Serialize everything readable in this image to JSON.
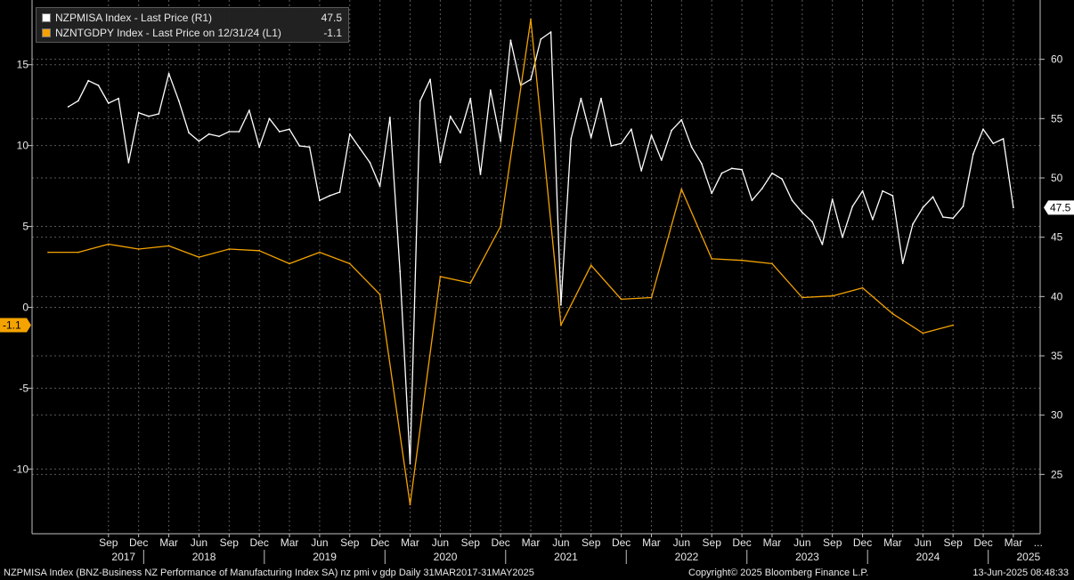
{
  "colors": {
    "background": "#000000",
    "pmi_line": "#ffffff",
    "gdp_line": "#f4a300",
    "grid": "#5a5a5a",
    "text": "#e8e8e8"
  },
  "legend": {
    "pmi_label": "NZPMISA Index - Last Price (R1)",
    "pmi_value": "47.5",
    "gdp_label": "NZNTGDPY Index - Last Price on 12/31/24 (L1)",
    "gdp_value": "-1.1"
  },
  "footer": {
    "left": "NZPMISA Index (BNZ-Business NZ Performance of Manufacturing Index SA) nz pmi v gdp  Daily 31MAR2017-31MAY2025",
    "center": "Copyright© 2025 Bloomberg Finance L.P.",
    "right": "13-Jun-2025 08:48:33"
  },
  "chart_data": {
    "type": "line",
    "grid": true,
    "legend_position": "top-left",
    "x_axis": {
      "month_labels": [
        "Sep",
        "Dec",
        "Mar",
        "Jun",
        "Sep",
        "Dec",
        "Mar",
        "Jun",
        "Sep",
        "Dec",
        "Mar",
        "Jun",
        "Sep",
        "Dec",
        "Mar",
        "Jun",
        "Sep",
        "Dec",
        "Mar",
        "Jun",
        "Sep",
        "Dec",
        "Mar",
        "Jun",
        "Sep",
        "Dec",
        "Mar",
        "Jun",
        "Sep",
        "Dec",
        "Mar",
        "..."
      ],
      "year_labels": [
        "2017",
        "2018",
        "2019",
        "2020",
        "2021",
        "2022",
        "2023",
        "2024",
        "2025"
      ]
    },
    "y_left": {
      "series": "NZNTGDPY Index",
      "range": [
        -14,
        19
      ],
      "ticks": [
        "15",
        "10",
        "5",
        "0",
        "-5",
        "-10"
      ],
      "last_value_tag": "-1.1"
    },
    "y_right": {
      "series": "NZPMISA Index",
      "range": [
        20,
        65
      ],
      "ticks": [
        "60",
        "55",
        "50",
        "45",
        "40",
        "35",
        "30",
        "25"
      ],
      "last_value_tag": "47.5"
    },
    "series": [
      {
        "name": "NZPMISA Index",
        "axis": "right",
        "x_start": "2017-05",
        "x_step": "1 month",
        "values": [
          56.0,
          56.5,
          58.2,
          57.8,
          56.3,
          56.7,
          51.3,
          55.5,
          55.2,
          55.4,
          58.8,
          56.5,
          53.8,
          53.1,
          53.7,
          53.5,
          53.9,
          53.9,
          55.7,
          52.6,
          55.0,
          53.9,
          54.1,
          52.7,
          52.6,
          48.1,
          48.5,
          48.8,
          53.7,
          52.5,
          51.3,
          49.3,
          55.1,
          42.1,
          25.9,
          56.5,
          58.3,
          51.3,
          55.2,
          53.8,
          56.7,
          50.3,
          57.4,
          53.1,
          61.6,
          57.8,
          58.3,
          61.7,
          62.3,
          39.3,
          53.3,
          56.7,
          53.4,
          56.7,
          52.7,
          52.9,
          54.1,
          50.6,
          53.6,
          51.5,
          54.0,
          54.9,
          52.6,
          51.2,
          48.7,
          50.4,
          50.8,
          50.7,
          48.1,
          49.1,
          50.4,
          49.9,
          48.1,
          47.1,
          46.3,
          44.4,
          48.2,
          45.0,
          47.6,
          48.9,
          46.5,
          48.9,
          48.5,
          42.8,
          46.1,
          47.5,
          48.4,
          46.7,
          46.6,
          47.6,
          52.0,
          54.1,
          52.9,
          53.3,
          47.5
        ]
      },
      {
        "name": "NZNTGDPY Index",
        "axis": "left",
        "x_start": "2017-03",
        "x_step": "1 quarter",
        "values": [
          3.4,
          3.4,
          3.9,
          3.6,
          3.8,
          3.1,
          3.6,
          3.5,
          2.7,
          3.4,
          2.7,
          0.8,
          -12.2,
          1.9,
          1.5,
          5.0,
          17.8,
          -1.1,
          2.6,
          0.5,
          0.6,
          7.3,
          3.0,
          2.9,
          2.7,
          0.6,
          0.7,
          1.2,
          -0.4,
          -1.6,
          -1.1
        ]
      }
    ]
  }
}
